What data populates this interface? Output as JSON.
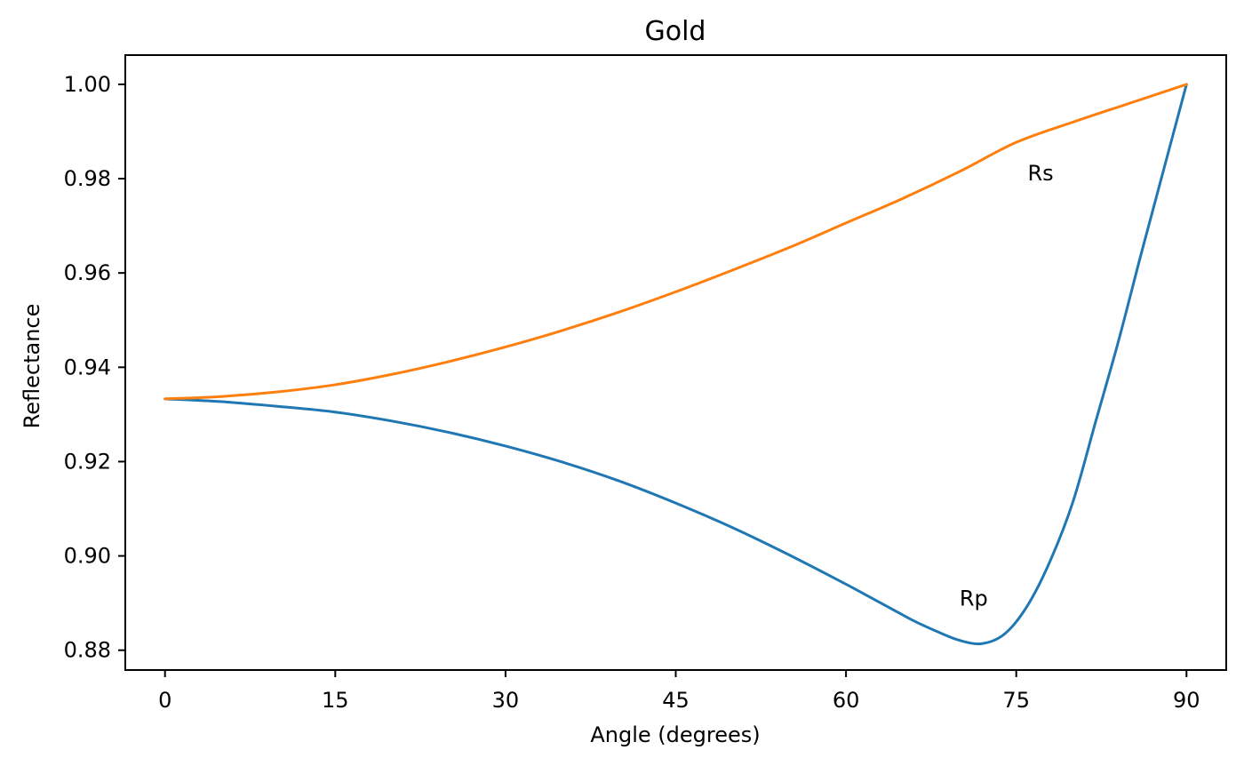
{
  "chart_data": {
    "type": "line",
    "title": "Gold",
    "xlabel": "Angle (degrees)",
    "ylabel": "Reflectance",
    "xlim": [
      -3.5,
      93.5
    ],
    "ylim": [
      0.8758,
      1.0062
    ],
    "xticks": [
      0,
      15,
      30,
      45,
      60,
      75,
      90
    ],
    "xtick_labels": [
      "0",
      "15",
      "30",
      "45",
      "60",
      "75",
      "90"
    ],
    "yticks": [
      0.88,
      0.9,
      0.92,
      0.94,
      0.96,
      0.98,
      1.0
    ],
    "ytick_labels": [
      "0.88",
      "0.90",
      "0.92",
      "0.94",
      "0.96",
      "0.98",
      "1.00"
    ],
    "grid": false,
    "legend": "none",
    "series": [
      {
        "name": "Rp",
        "color": "#1f77b4",
        "x": [
          0,
          5,
          10,
          15,
          20,
          25,
          30,
          35,
          40,
          45,
          50,
          55,
          60,
          62,
          64,
          66,
          68,
          70,
          72,
          74,
          76,
          78,
          80,
          82,
          84,
          86,
          88,
          90
        ],
        "y": [
          0.9333,
          0.9327,
          0.9317,
          0.9305,
          0.9286,
          0.9262,
          0.9233,
          0.9199,
          0.9159,
          0.9112,
          0.906,
          0.9002,
          0.894,
          0.8914,
          0.8888,
          0.8862,
          0.884,
          0.8821,
          0.8814,
          0.8835,
          0.8895,
          0.899,
          0.9115,
          0.9285,
          0.9455,
          0.964,
          0.982,
          1.0
        ]
      },
      {
        "name": "Rs",
        "color": "#ff7f0e",
        "x": [
          0,
          5,
          10,
          15,
          20,
          25,
          30,
          35,
          40,
          45,
          50,
          55,
          60,
          65,
          70,
          75,
          80,
          85,
          90
        ],
        "y": [
          0.9333,
          0.9338,
          0.9348,
          0.9363,
          0.9385,
          0.9412,
          0.9443,
          0.9478,
          0.9517,
          0.956,
          0.9606,
          0.9654,
          0.9706,
          0.9758,
          0.9815,
          0.9877,
          0.992,
          0.996,
          1.0
        ]
      }
    ],
    "annotations": [
      {
        "text": "Rp",
        "x": 70,
        "y": 0.8895
      },
      {
        "text": "Rs",
        "x": 76,
        "y": 0.9796
      }
    ]
  }
}
